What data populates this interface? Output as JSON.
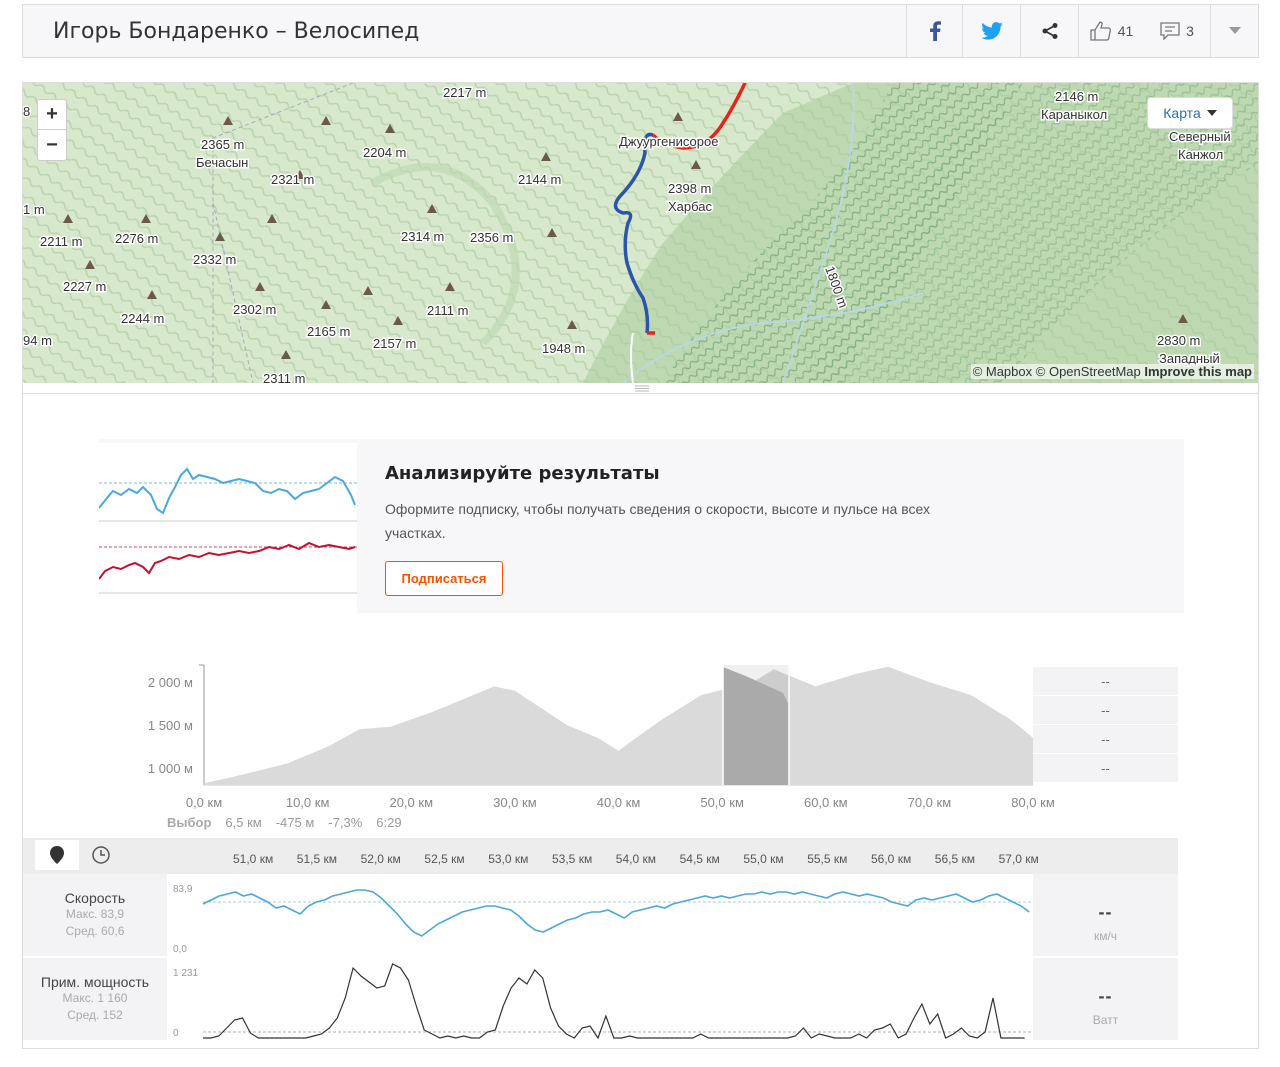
{
  "header": {
    "title": "Игорь Бондаренко – Велосипед",
    "kudos": "41",
    "comments": "3"
  },
  "map": {
    "zoom_in": "+",
    "zoom_out": "−",
    "map_type": "Карта",
    "attribution_mapbox": "© Mapbox",
    "attribution_osm": "© OpenStreetMap",
    "attribution_improve": "Improve this map",
    "labels": [
      {
        "t": "2217 m"
      },
      {
        "t": "2365 m"
      },
      {
        "t": "Бечасын"
      },
      {
        "t": "2204 m"
      },
      {
        "t": "2321 m"
      },
      {
        "t": "2144 m"
      },
      {
        "t": "2211 m"
      },
      {
        "t": "2276 m"
      },
      {
        "t": "2332 m"
      },
      {
        "t": "2314 m"
      },
      {
        "t": "2356 m"
      },
      {
        "t": "2227 m"
      },
      {
        "t": "2244 m"
      },
      {
        "t": "2302 m"
      },
      {
        "t": "2111 m"
      },
      {
        "t": "2165 m"
      },
      {
        "t": "2157 m"
      },
      {
        "t": "1948 m"
      },
      {
        "t": "2311 m"
      },
      {
        "t": "Джуургенисорое"
      },
      {
        "t": "2398 m"
      },
      {
        "t": "Харбас"
      },
      {
        "t": "2146 m"
      },
      {
        "t": "Караныкол"
      },
      {
        "t": "Северный"
      },
      {
        "t": "Канжол"
      },
      {
        "t": "2830 m"
      },
      {
        "t": "Западный"
      },
      {
        "t": "1800 m"
      },
      {
        "t": "1 m"
      },
      {
        "t": "8"
      },
      {
        "t": "94 m"
      }
    ]
  },
  "promo": {
    "title": "Анализируйте результаты",
    "text": "Оформите подписку, чтобы получать сведения о скорости, высоте и пульсе на всех участках.",
    "button": "Подписаться"
  },
  "elevation": {
    "y_ticks": [
      "2 000 м",
      "1 500 м",
      "1 000 м"
    ],
    "x_ticks": [
      "0,0 км",
      "10,0 км",
      "20,0 км",
      "30,0 км",
      "40,0 км",
      "50,0 км",
      "60,0 км",
      "70,0 км",
      "80,0 км"
    ],
    "selection": {
      "label": "Выбор",
      "distance": "6,5 км",
      "elev": "-475 м",
      "grade": "-7,3%",
      "time": "6:29"
    },
    "stats": [
      "--",
      "--",
      "--",
      "--"
    ]
  },
  "streams": {
    "ticks": [
      "51,0 км",
      "51,5 км",
      "52,0 км",
      "52,5 км",
      "53,0 км",
      "53,5 км",
      "54,0 км",
      "54,5 км",
      "55,0 км",
      "55,5 км",
      "56,0 км",
      "56,5 км",
      "57,0 км"
    ],
    "speed": {
      "name": "Скорость",
      "max": "Макс. 83,9",
      "avg": "Сред. 60,6",
      "ymax": "83,9",
      "ymin": "0,0",
      "value": "--",
      "unit": "км/ч"
    },
    "power": {
      "name": "Прим. мощность",
      "max": "Макс. 1 160",
      "avg": "Сред. 152",
      "ymax": "1 231",
      "ymin": "0",
      "value": "--",
      "unit": "Ватт"
    }
  },
  "colors": {
    "accent": "#fc5200",
    "speed": "#4ba8dc",
    "power": "#333333",
    "route_blue": "#2a55a8",
    "route_red": "#e8231b",
    "fb": "#3b5998",
    "tw": "#1da1f2"
  }
}
